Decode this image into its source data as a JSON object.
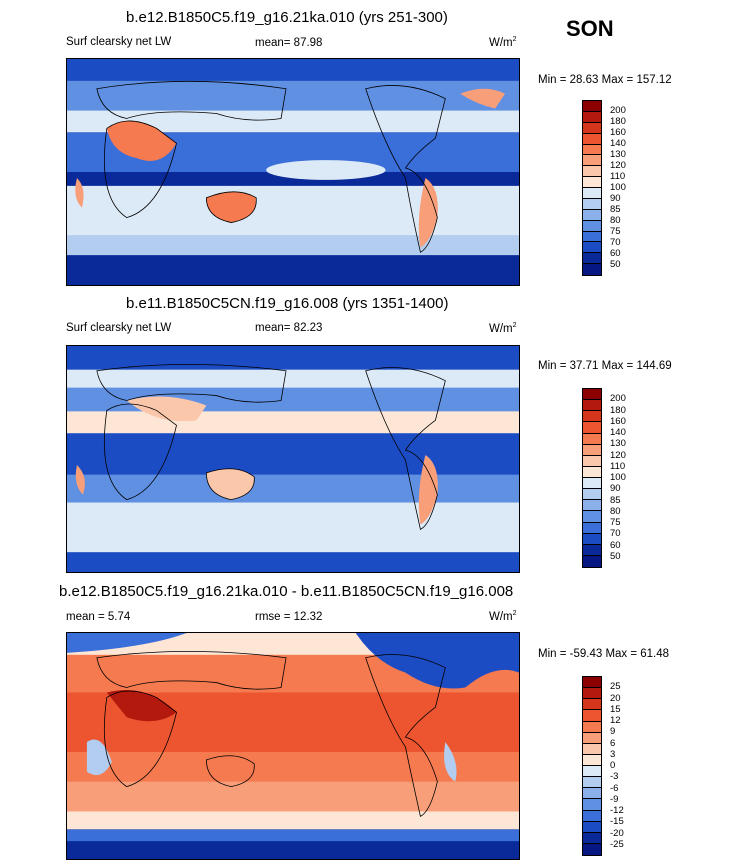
{
  "season": "SON",
  "panels": [
    {
      "title": "b.e12.B1850C5.f19_g16.21ka.010 (yrs 251-300)",
      "variable": "Surf clearsky net LW",
      "stat": "mean=  87.98",
      "units": "W/m",
      "units_exp": "2",
      "minmax": "Min =  28.63 Max = 157.12",
      "colorbar": {
        "levels": [
          "200",
          "180",
          "160",
          "140",
          "130",
          "120",
          "110",
          "100",
          "90",
          "85",
          "80",
          "75",
          "70",
          "60",
          "50"
        ],
        "colors": [
          "#8b0000",
          "#b3190c",
          "#d6361c",
          "#ec5530",
          "#f57a50",
          "#f89f7a",
          "#fbc7aa",
          "#fde6d6",
          "#dce9f6",
          "#b3cdf0",
          "#8cb0ea",
          "#6090e2",
          "#3a6ed8",
          "#1c4cc4",
          "#0a2a9a",
          "#061683"
        ]
      },
      "chart_data": {
        "type": "heatmap",
        "title": "b.e12.B1850C5.f19_g16.21ka.010 (yrs 251-300)",
        "variable": "Surf clearsky net LW",
        "units": "W/m2",
        "mean": 87.98,
        "min": 28.63,
        "max": 157.12,
        "contour_levels": [
          50,
          60,
          70,
          75,
          80,
          85,
          90,
          100,
          110,
          120,
          130,
          140,
          160,
          180,
          200
        ]
      }
    },
    {
      "title": "b.e11.B1850C5CN.f19_g16.008 (yrs 1351-1400)",
      "variable": "Surf clearsky net LW",
      "stat": "mean=  82.23",
      "units": "W/m",
      "units_exp": "2",
      "minmax": "Min =  37.71 Max = 144.69",
      "colorbar": {
        "levels": [
          "200",
          "180",
          "160",
          "140",
          "130",
          "120",
          "110",
          "100",
          "90",
          "85",
          "80",
          "75",
          "70",
          "60",
          "50"
        ],
        "colors": [
          "#8b0000",
          "#b3190c",
          "#d6361c",
          "#ec5530",
          "#f57a50",
          "#f89f7a",
          "#fbc7aa",
          "#fde6d6",
          "#dce9f6",
          "#b3cdf0",
          "#8cb0ea",
          "#6090e2",
          "#3a6ed8",
          "#1c4cc4",
          "#0a2a9a",
          "#061683"
        ]
      },
      "chart_data": {
        "type": "heatmap",
        "title": "b.e11.B1850C5CN.f19_g16.008 (yrs 1351-1400)",
        "variable": "Surf clearsky net LW",
        "units": "W/m2",
        "mean": 82.23,
        "min": 37.71,
        "max": 144.69,
        "contour_levels": [
          50,
          60,
          70,
          75,
          80,
          85,
          90,
          100,
          110,
          120,
          130,
          140,
          160,
          180,
          200
        ]
      }
    },
    {
      "title": "b.e12.B1850C5.f19_g16.21ka.010 - b.e11.B1850C5CN.f19_g16.008",
      "variable": "mean =   5.74",
      "stat": "rmse =  12.32",
      "units": "W/m",
      "units_exp": "2",
      "minmax": "Min = -59.43 Max =  61.48",
      "colorbar": {
        "levels": [
          "25",
          "20",
          "15",
          "12",
          "9",
          "6",
          "3",
          "0",
          "-3",
          "-6",
          "-9",
          "-12",
          "-15",
          "-20",
          "-25"
        ],
        "colors": [
          "#8b0000",
          "#b3190c",
          "#d6361c",
          "#ec5530",
          "#f57a50",
          "#f89f7a",
          "#fbc7aa",
          "#fde6d6",
          "#dce9f6",
          "#b3cdf0",
          "#8cb0ea",
          "#6090e2",
          "#3a6ed8",
          "#1c4cc4",
          "#0a2a9a",
          "#061683"
        ]
      },
      "chart_data": {
        "type": "heatmap",
        "title": "b.e12.B1850C5.f19_g16.21ka.010 - b.e11.B1850C5CN.f19_g16.008",
        "units": "W/m2",
        "mean": 5.74,
        "rmse": 12.32,
        "min": -59.43,
        "max": 61.48,
        "contour_levels": [
          -25,
          -20,
          -15,
          -12,
          -9,
          -6,
          -3,
          0,
          3,
          6,
          9,
          12,
          15,
          20,
          25
        ]
      }
    }
  ]
}
